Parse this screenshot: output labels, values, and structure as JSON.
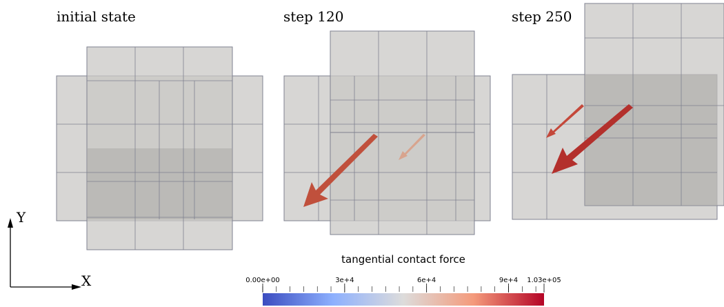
{
  "panels": [
    {
      "title": "initial state"
    },
    {
      "title": "step 120"
    },
    {
      "title": "step 250"
    }
  ],
  "axes": {
    "x": "X",
    "y": "Y"
  },
  "colorbar": {
    "title": "tangential contact force",
    "range": [
      0,
      103000
    ],
    "ticks": [
      {
        "value": 0,
        "label": "0.00e+00"
      },
      {
        "value": 30000,
        "label": "3e+4"
      },
      {
        "value": 60000,
        "label": "6e+4"
      },
      {
        "value": 90000,
        "label": "9e+4"
      },
      {
        "value": 103000,
        "label": "1.03e+05"
      }
    ]
  }
}
